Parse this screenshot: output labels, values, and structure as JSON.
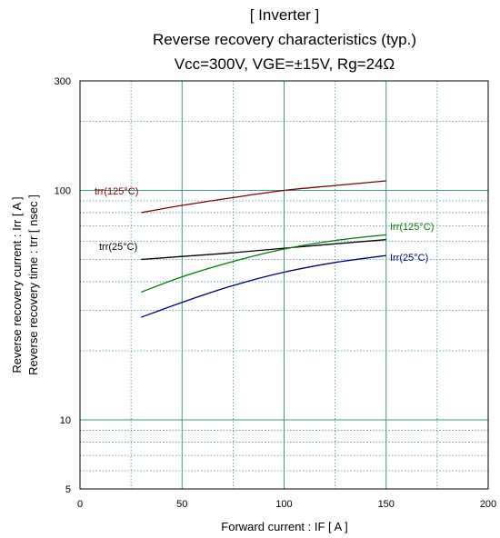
{
  "chart_data": {
    "type": "line",
    "title_lines": [
      "[ Inverter ]",
      "Reverse recovery characteristics  (typ.)",
      "Vcc=300V, VGE=±15V, Rg=24Ω"
    ],
    "xlabel": "Forward current : IF [ A ]",
    "ylabel_lines": [
      "Reverse recovery current : Irr [ A ]",
      "Reverse recovery time : trr [ nsec ]"
    ],
    "xlim": [
      0,
      200
    ],
    "ylim": [
      5,
      300
    ],
    "yscale": "log",
    "grid": true,
    "x_ticks": [
      0,
      50,
      100,
      150,
      200
    ],
    "y_ticks": [
      5,
      10,
      100,
      300
    ],
    "series": [
      {
        "name": "trr(125°C)",
        "color": "#800000",
        "x": [
          30,
          50,
          75,
          100,
          125,
          150
        ],
        "y": [
          80,
          86,
          93,
          100,
          105,
          110
        ]
      },
      {
        "name": "trr(25°C)",
        "color": "#000000",
        "x": [
          30,
          50,
          75,
          100,
          125,
          150
        ],
        "y": [
          50,
          51.5,
          53.5,
          56,
          58.5,
          61
        ]
      },
      {
        "name": "Irr(125°C)",
        "color": "#008000",
        "x": [
          30,
          50,
          75,
          100,
          125,
          150
        ],
        "y": [
          36,
          42,
          49,
          55.5,
          60.5,
          64
        ]
      },
      {
        "name": "Irr(25°C)",
        "color": "#000080",
        "x": [
          30,
          50,
          75,
          100,
          125,
          150
        ],
        "y": [
          28,
          32.5,
          38.5,
          44,
          48.5,
          52
        ]
      }
    ]
  }
}
